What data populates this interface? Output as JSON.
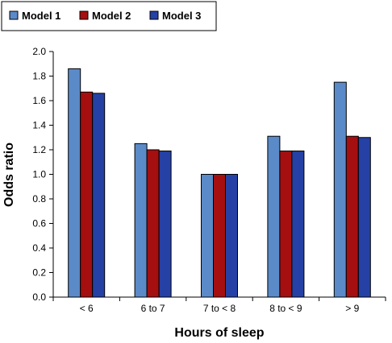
{
  "chart_data": {
    "type": "bar",
    "title": "",
    "xlabel": "Hours of sleep",
    "ylabel": "Odds ratio",
    "categories": [
      "< 6",
      "6 to 7",
      "7 to < 8",
      "8 to < 9",
      "> 9"
    ],
    "series": [
      {
        "name": "Model 1",
        "color": "#5b8ac8",
        "values": [
          1.86,
          1.25,
          1.0,
          1.31,
          1.75
        ]
      },
      {
        "name": "Model 2",
        "color": "#a50f0f",
        "values": [
          1.67,
          1.2,
          1.0,
          1.19,
          1.31
        ]
      },
      {
        "name": "Model 3",
        "color": "#2541a5",
        "values": [
          1.66,
          1.19,
          1.0,
          1.19,
          1.3
        ]
      }
    ],
    "ylim": [
      0,
      2.0
    ],
    "yticks": [
      "0.0",
      "0.2",
      "0.4",
      "0.6",
      "0.8",
      "1.0",
      "1.2",
      "1.4",
      "1.6",
      "1.8",
      "2.0"
    ],
    "grid": false,
    "legend_position": "top-left"
  }
}
